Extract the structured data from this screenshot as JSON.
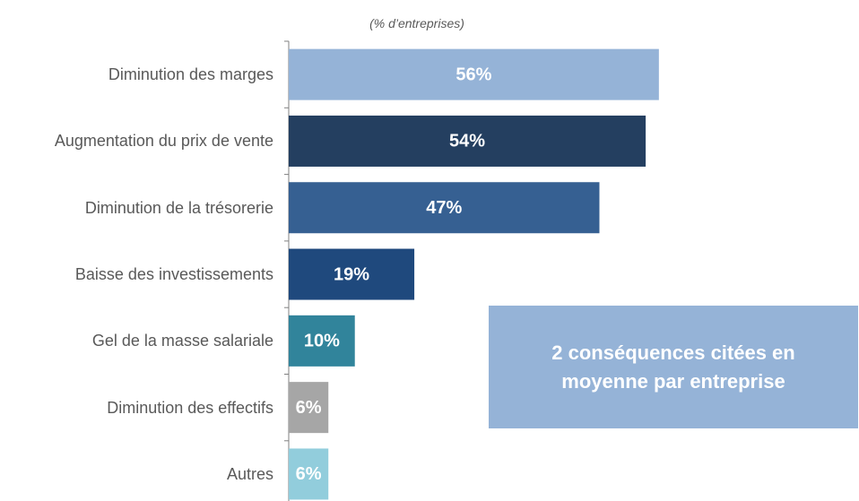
{
  "chart_data": {
    "type": "bar",
    "orientation": "horizontal",
    "subtitle": "(% d’entreprises)",
    "annotation": "2 conséquences citées en moyenne par entreprise",
    "categories": [
      "Diminution des marges",
      "Augmentation du prix de vente",
      "Diminution de la trésorerie",
      "Baisse des investissements",
      "Gel de la masse salariale",
      "Diminution des effectifs",
      "Autres"
    ],
    "values": [
      56,
      54,
      47,
      19,
      10,
      6,
      6
    ],
    "value_labels": [
      "56%",
      "54%",
      "47%",
      "19%",
      "10%",
      "6%",
      "6%"
    ],
    "colors": [
      "#95b3d7",
      "#243f60",
      "#366092",
      "#1f497d",
      "#31849b",
      "#a6a6a6",
      "#92cddc"
    ],
    "xlim": [
      0,
      86
    ]
  }
}
